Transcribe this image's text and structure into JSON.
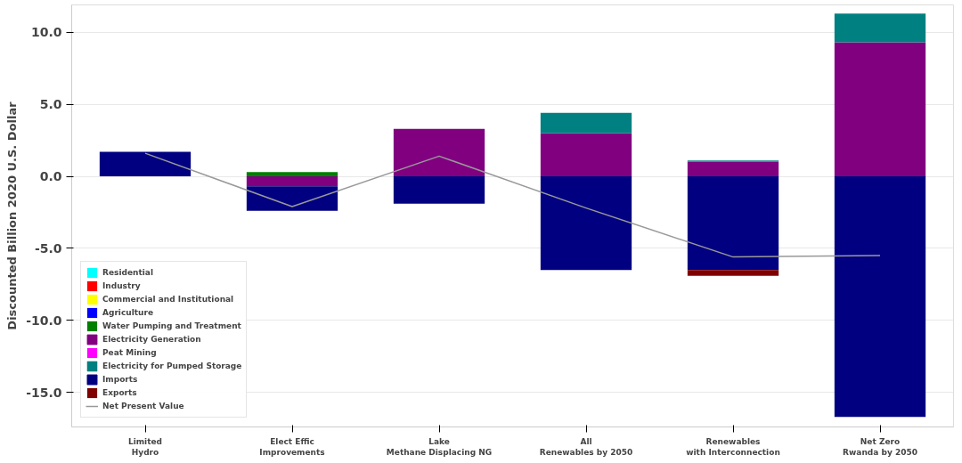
{
  "chart_data": {
    "type": "bar",
    "stacked": true,
    "ylabel": "Discounted Billion 2020 U.S. Dollar",
    "categories": [
      "Limited\nHydro",
      "Elect Effic\nImprovements",
      "Lake\nMethane Displacing NG",
      "All\nRenewables by 2050",
      "Renewables\nwith Interconnection",
      "Net Zero\nRwanda by 2050"
    ],
    "series": [
      {
        "name": "Residential",
        "color": "#00ffff",
        "values": [
          0,
          0,
          0,
          0,
          0,
          0
        ]
      },
      {
        "name": "Industry",
        "color": "#ff0000",
        "values": [
          0,
          0,
          0,
          0,
          0,
          0
        ]
      },
      {
        "name": "Commercial and Institutional",
        "color": "#ffff00",
        "values": [
          0,
          0,
          0,
          0,
          0,
          0
        ]
      },
      {
        "name": "Agriculture",
        "color": "#0000ff",
        "values": [
          0,
          0,
          0,
          0,
          0,
          0
        ]
      },
      {
        "name": "Water Pumping and Treatment",
        "color": "#008000",
        "values": [
          0,
          0.3,
          0,
          0,
          0,
          0
        ]
      },
      {
        "name": "Electricity Generation",
        "color": "#800080",
        "values": [
          null,
          -0.7,
          3.3,
          3.0,
          1.0,
          9.3
        ]
      },
      {
        "name": "Peat Mining",
        "color": "#ff00ff",
        "values": [
          0,
          0,
          0,
          0,
          0,
          0
        ]
      },
      {
        "name": "Electricity for Pumped Storage",
        "color": "#008080",
        "values": [
          0,
          0,
          0,
          1.4,
          0.1,
          2.0
        ]
      },
      {
        "name": "Imports",
        "color": "#000080",
        "values": [
          1.7,
          -1.7,
          -1.9,
          -6.5,
          -6.5,
          -16.7
        ]
      },
      {
        "name": "Exports",
        "color": "#800000",
        "values": [
          0,
          0,
          0,
          0,
          -0.4,
          0
        ]
      },
      {
        "name": "Net Present Value",
        "type": "line",
        "color": "#999999",
        "values": [
          1.6,
          -2.1,
          1.4,
          -2.2,
          -5.6,
          -5.5
        ]
      }
    ],
    "ylim": [
      -17.4,
      11.9
    ],
    "yticks": [
      {
        "value": -15,
        "label": "-15.0"
      },
      {
        "value": -10,
        "label": "-10.0"
      },
      {
        "value": -5,
        "label": "-5.0"
      },
      {
        "value": 0,
        "label": "0.0"
      },
      {
        "value": 5,
        "label": "5.0"
      },
      {
        "value": 10,
        "label": "10.0"
      }
    ],
    "grid": "y",
    "legend": "bottom left"
  }
}
